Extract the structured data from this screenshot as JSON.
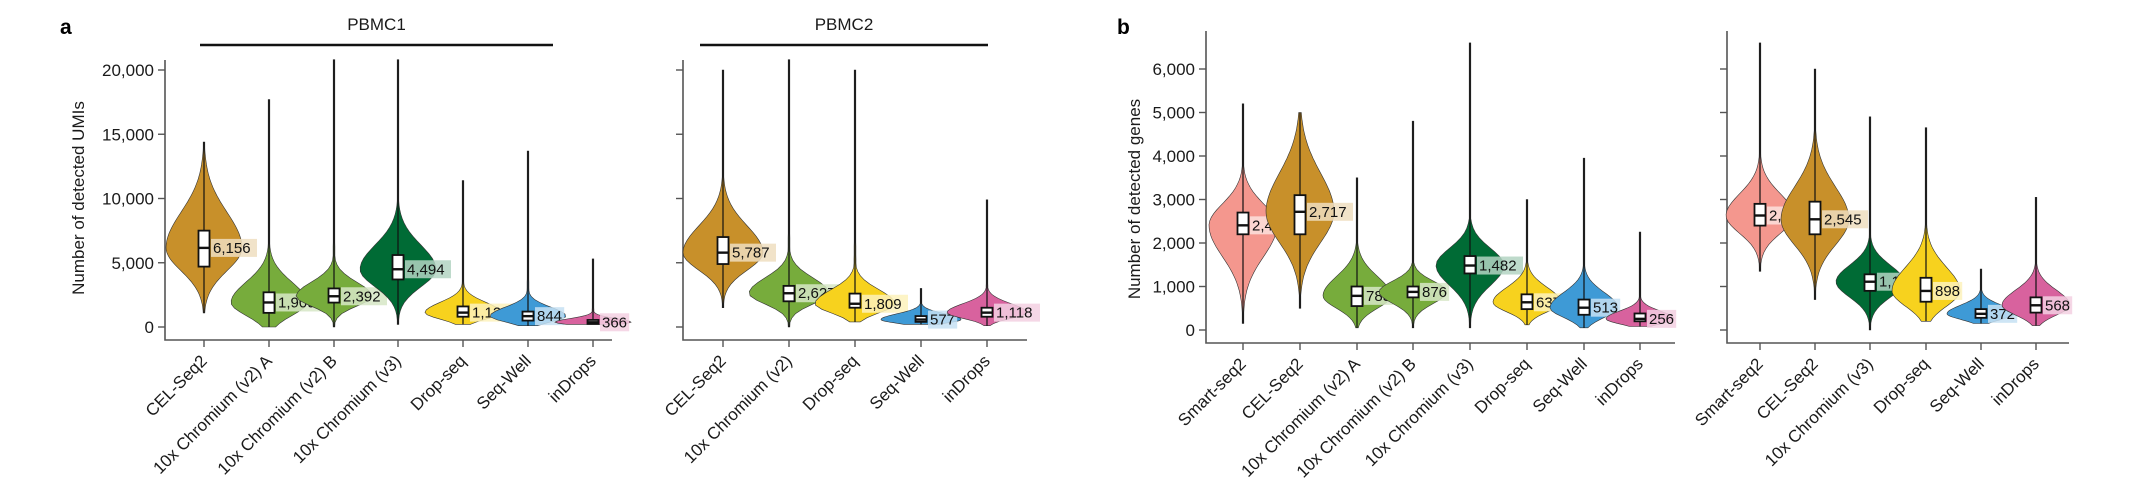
{
  "figure": {
    "panels": [
      {
        "letter": "a",
        "ylabel": "Number of detected UMIs"
      },
      {
        "letter": "b",
        "ylabel": "Number of detected genes"
      }
    ],
    "colors": {
      "Smart-seq2": "#F4978E",
      "CEL-Seq2": "#C8902A",
      "10x Chromium (v2) A": "#77AC3C",
      "10x Chromium (v2) B": "#77AC3C",
      "10x Chromium (v2)": "#77AC3C",
      "10x Chromium (v3)": "#006B35",
      "Drop-seq": "#F7D21E",
      "Seq-Well": "#3E9AD6",
      "inDrops": "#D8629E"
    }
  },
  "chart_data": [
    {
      "type": "violin",
      "panel": "a",
      "title": "PBMC1",
      "ylabel": "Number of detected UMIs",
      "ylim": [
        0,
        21000
      ],
      "yticks": [
        0,
        5000,
        10000,
        15000,
        20000
      ],
      "ytick_labels": [
        "0",
        "5,000",
        "10,000",
        "15,000",
        "20,000"
      ],
      "categories": [
        "CEL-Seq2",
        "10x Chromium (v2) A",
        "10x Chromium (v2) B",
        "10x Chromium (v3)",
        "Drop-seq",
        "Seq-Well",
        "inDrops"
      ],
      "medians": [
        6156,
        1909,
        2392,
        4494,
        1120,
        844,
        366
      ],
      "median_labels": [
        "6,156",
        "1,909",
        "2,392",
        "4,494",
        "1,120",
        "844",
        "366"
      ],
      "q1": [
        4700,
        1100,
        1900,
        3700,
        800,
        500,
        250
      ],
      "q3": [
        7500,
        2700,
        3000,
        5600,
        1600,
        1200,
        550
      ],
      "min": [
        1100,
        0,
        0,
        200,
        200,
        100,
        200
      ],
      "max": [
        14400,
        17700,
        20800,
        20800,
        11400,
        13700,
        5300
      ]
    },
    {
      "type": "violin",
      "panel": "a",
      "title": "PBMC2",
      "ylabel": "Number of detected UMIs",
      "ylim": [
        0,
        21000
      ],
      "yticks": [
        0,
        5000,
        10000,
        15000,
        20000
      ],
      "categories": [
        "CEL-Seq2",
        "10x Chromium (v2)",
        "Drop-seq",
        "Seq-Well",
        "inDrops"
      ],
      "medians": [
        5787,
        2627,
        1809,
        577,
        1118
      ],
      "median_labels": [
        "5,787",
        "2,627",
        "1,809",
        "577",
        "1,118"
      ],
      "q1": [
        4900,
        2000,
        1500,
        400,
        800
      ],
      "q3": [
        7000,
        3200,
        2600,
        850,
        1500
      ],
      "min": [
        1500,
        0,
        400,
        200,
        100
      ],
      "max": [
        20000,
        20800,
        20000,
        3000,
        9900
      ]
    },
    {
      "type": "violin",
      "panel": "b",
      "title": "",
      "ylabel": "Number of detected genes",
      "ylim": [
        0,
        6600
      ],
      "yticks": [
        0,
        1000,
        2000,
        3000,
        4000,
        5000,
        6000
      ],
      "ytick_labels": [
        "0",
        "1,000",
        "2,000",
        "3,000",
        "4,000",
        "5,000",
        "6,000"
      ],
      "categories": [
        "Smart-seq2",
        "CEL-Seq2",
        "10x Chromium (v2) A",
        "10x Chromium (v2) B",
        "10x Chromium (v3)",
        "Drop-seq",
        "Seq-Well",
        "inDrops"
      ],
      "medians": [
        2406,
        2717,
        785,
        876,
        1482,
        637,
        513,
        256
      ],
      "median_labels": [
        "2,406",
        "2,717",
        "785",
        "876",
        "1,482",
        "637",
        "513",
        "256"
      ],
      "q1": [
        2200,
        2200,
        550,
        750,
        1300,
        480,
        350,
        200
      ],
      "q3": [
        2700,
        3100,
        1000,
        1000,
        1700,
        820,
        700,
        380
      ],
      "min": [
        150,
        500,
        50,
        50,
        50,
        120,
        50,
        80
      ],
      "max": [
        5200,
        5000,
        3500,
        4800,
        6600,
        3000,
        3950,
        2250
      ]
    },
    {
      "type": "violin",
      "panel": "b",
      "title": "",
      "ylabel": "Number of detected genes",
      "ylim": [
        0,
        6600
      ],
      "yticks": [
        0,
        1000,
        2000,
        3000,
        4000,
        5000,
        6000
      ],
      "categories": [
        "Smart-seq2",
        "CEL-Seq2",
        "10x Chromium (v3)",
        "Drop-seq",
        "Seq-Well",
        "inDrops"
      ],
      "medians": [
        2632,
        2545,
        1110,
        898,
        372,
        568
      ],
      "median_labels": [
        "2,632",
        "2,545",
        "1,110",
        "898",
        "372",
        "568"
      ],
      "q1": [
        2400,
        2200,
        900,
        650,
        280,
        400
      ],
      "q3": [
        2900,
        2950,
        1280,
        1200,
        480,
        750
      ],
      "min": [
        1350,
        700,
        0,
        200,
        150,
        100
      ],
      "max": [
        6600,
        6000,
        4900,
        4650,
        1400,
        3050
      ]
    }
  ]
}
